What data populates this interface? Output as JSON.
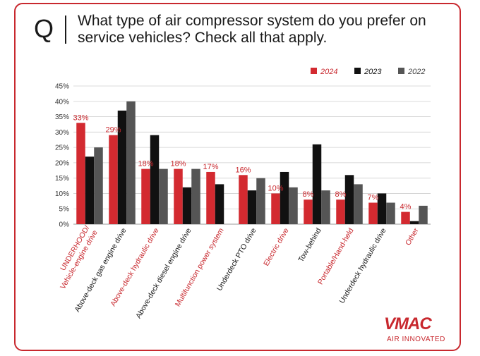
{
  "header": {
    "q_letter": "Q",
    "question": "What type of air compressor system do you prefer on service vehicles? Check all that apply."
  },
  "colors": {
    "accent": "#c8282e",
    "series_2024": "#d32a30",
    "series_2023": "#111111",
    "series_2022": "#555555",
    "label_red": "#c8282e",
    "label_dark": "#1a1a1a"
  },
  "chart_data": {
    "type": "bar",
    "categories": [
      "UNDERHOOD/ Vehicle-engine drive",
      "Above-deck gas engine drive",
      "Above-deck hydraulic drive",
      "Above-deck diesel engine drive",
      "Multifunction power system",
      "Underdeck PTO drive",
      "Electric drive",
      "Tow-behind",
      "Portable/Hand-held",
      "Underdeck hydraulic drive",
      "Other"
    ],
    "category_label_colors": [
      "red",
      "dark",
      "red",
      "dark",
      "red",
      "dark",
      "red",
      "dark",
      "red",
      "dark",
      "red"
    ],
    "series": [
      {
        "name": "2024",
        "values": [
          33,
          29,
          18,
          18,
          17,
          16,
          10,
          8,
          8,
          7,
          4
        ]
      },
      {
        "name": "2023",
        "values": [
          22,
          37,
          29,
          12,
          13,
          11,
          17,
          26,
          16,
          10,
          1
        ]
      },
      {
        "name": "2022",
        "values": [
          25,
          40,
          18,
          18,
          0,
          15,
          12,
          11,
          13,
          7,
          6
        ]
      }
    ],
    "data_labels_2024": [
      "33%",
      "29%",
      "18%",
      "18%",
      "17%",
      "16%",
      "10%",
      "8%",
      "8%",
      "7%",
      "4%"
    ],
    "yticks": [
      "0%",
      "5%",
      "10%",
      "15%",
      "20%",
      "25%",
      "30%",
      "35%",
      "40%",
      "45%"
    ],
    "ylim": [
      0,
      45
    ],
    "grid": true,
    "legend_position": "top-right"
  },
  "logo": {
    "wordmark": "VMAC",
    "tagline": "AIR INNOVATED"
  }
}
